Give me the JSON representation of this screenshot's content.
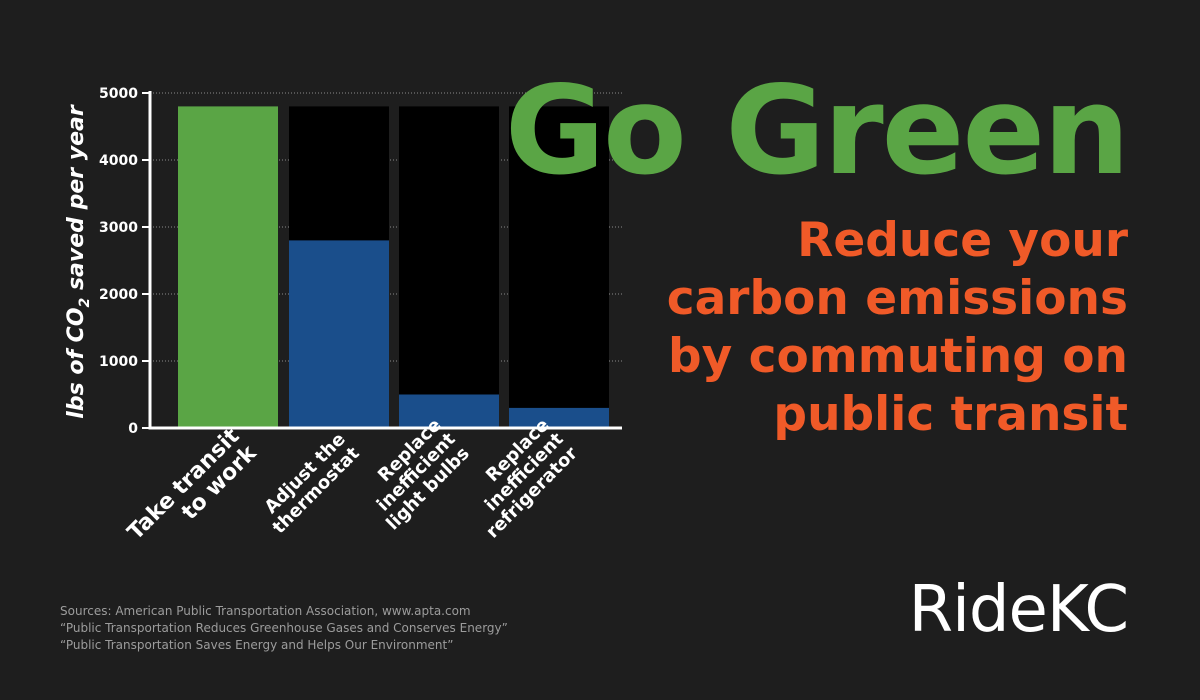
{
  "colors": {
    "background": "#1e1e1e",
    "plot_background": "#000000",
    "green": "#5aa545",
    "blue": "#1a4e8b",
    "orange": "#f05a28",
    "axis": "#ffffff",
    "source_text": "#9c9c9c"
  },
  "headline": "Go Green",
  "subhead": "Reduce your carbon emissions by commuting on public transit",
  "sources": [
    "Sources: American Public Transportation Association, www.apta.com",
    "“Public Transportation Reduces Greenhouse Gases and Conserves Energy”",
    "“Public Transportation Saves Energy and Helps Our Environment”"
  ],
  "brand": "RideKC",
  "chart_data": {
    "type": "bar",
    "title": "",
    "xlabel": "",
    "ylabel_parts": [
      "lbs of CO",
      "2",
      " saved per year"
    ],
    "categories": [
      [
        "Take transit",
        "to work"
      ],
      [
        "Adjust the",
        "thermostat"
      ],
      [
        "Replace",
        "inefficient",
        "light bulbs"
      ],
      [
        "Replace",
        "inefficient",
        "refrigerator"
      ]
    ],
    "values": [
      4800,
      2800,
      500,
      300
    ],
    "bar_colors": [
      "#5aa545",
      "#1a4e8b",
      "#1a4e8b",
      "#1a4e8b"
    ],
    "ylim": [
      0,
      5000
    ],
    "yticks": [
      0,
      1000,
      2000,
      3000,
      4000,
      5000
    ],
    "max_reference": 4800,
    "grid": true
  }
}
